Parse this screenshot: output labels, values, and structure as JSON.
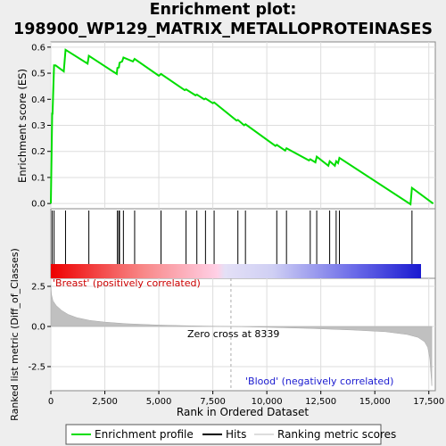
{
  "title": {
    "line1": "Enrichment plot:",
    "line2": "198900_WP129_MATRIX_METALLOPROTEINASES"
  },
  "chart_data": [
    {
      "type": "line",
      "name": "enrichment-profile",
      "ylabel": "Enrichment score (ES)",
      "xlim": [
        0,
        17800
      ],
      "ylim": [
        -0.02,
        0.62
      ],
      "yticks": [
        0.0,
        0.1,
        0.2,
        0.3,
        0.4,
        0.5,
        0.6
      ],
      "ytick_labels": [
        "0.0",
        "0.1",
        "0.2",
        "0.3",
        "0.4",
        "0.5",
        "0.6"
      ],
      "grid": true,
      "color": "#00dd00",
      "x": [
        0,
        60,
        80,
        150,
        220,
        600,
        680,
        1700,
        1760,
        3050,
        3080,
        3150,
        3180,
        3300,
        3360,
        3800,
        3880,
        5000,
        5100,
        6200,
        6260,
        6700,
        6760,
        7100,
        7160,
        7500,
        7560,
        8600,
        8660,
        8950,
        9010,
        10400,
        10460,
        10850,
        10910,
        11950,
        12010,
        12250,
        12310,
        12850,
        12910,
        13150,
        13210,
        13300,
        13360,
        16650,
        16720,
        17700
      ],
      "y": [
        0.0,
        0.345,
        0.345,
        0.53,
        0.53,
        0.507,
        0.59,
        0.537,
        0.567,
        0.497,
        0.52,
        0.522,
        0.54,
        0.545,
        0.56,
        0.545,
        0.555,
        0.49,
        0.497,
        0.435,
        0.438,
        0.415,
        0.418,
        0.4,
        0.403,
        0.385,
        0.388,
        0.318,
        0.321,
        0.3,
        0.304,
        0.221,
        0.225,
        0.203,
        0.212,
        0.165,
        0.17,
        0.158,
        0.18,
        0.145,
        0.162,
        0.145,
        0.162,
        0.155,
        0.175,
        -0.003,
        0.06,
        0.0
      ]
    },
    {
      "type": "scatter",
      "name": "hits",
      "x": [
        60,
        150,
        680,
        1760,
        3080,
        3150,
        3180,
        3360,
        3880,
        5100,
        6260,
        6760,
        7160,
        7560,
        8660,
        9010,
        10460,
        10910,
        12010,
        12310,
        12910,
        13210,
        13360,
        16720
      ]
    },
    {
      "type": "area",
      "name": "ranking-metric",
      "ylabel": "Ranked list metric (Diff_of_Classes)",
      "xlabel": "Rank in Ordered Dataset",
      "xlim": [
        0,
        17800
      ],
      "ylim": [
        -4.0,
        3.0
      ],
      "xticks": [
        0,
        2500,
        5000,
        7500,
        10000,
        12500,
        15000,
        17500
      ],
      "xtick_labels": [
        "0",
        "2,500",
        "5,000",
        "7,500",
        "10,000",
        "12,500",
        "15,000",
        "17,500"
      ],
      "yticks": [
        -2.5,
        0.0,
        2.5
      ],
      "ytick_labels": [
        "-2.5",
        "0.0",
        "2.5"
      ],
      "grid": true,
      "x": [
        0,
        30,
        100,
        250,
        500,
        800,
        1200,
        1800,
        2500,
        3500,
        5000,
        6500,
        8339,
        10000,
        12000,
        14000,
        15500,
        16500,
        17000,
        17300,
        17450,
        17550,
        17640
      ],
      "y": [
        2.6,
        2.0,
        1.6,
        1.3,
        1.0,
        0.75,
        0.55,
        0.38,
        0.27,
        0.17,
        0.09,
        0.04,
        0.0,
        -0.05,
        -0.12,
        -0.22,
        -0.33,
        -0.5,
        -0.68,
        -0.95,
        -1.3,
        -2.0,
        -3.7
      ],
      "annotations": {
        "zero_cross": "Zero cross at 8339",
        "positive": "'Breast' (positively correlated)",
        "negative": "'Blood' (negatively correlated)"
      }
    }
  ],
  "legend": {
    "position": "bottom",
    "items": [
      {
        "label": "Enrichment profile",
        "color": "#00dd00"
      },
      {
        "label": "Hits",
        "color": "#000000"
      },
      {
        "label": "Ranking metric scores",
        "color": "#bbbbbb"
      }
    ]
  }
}
